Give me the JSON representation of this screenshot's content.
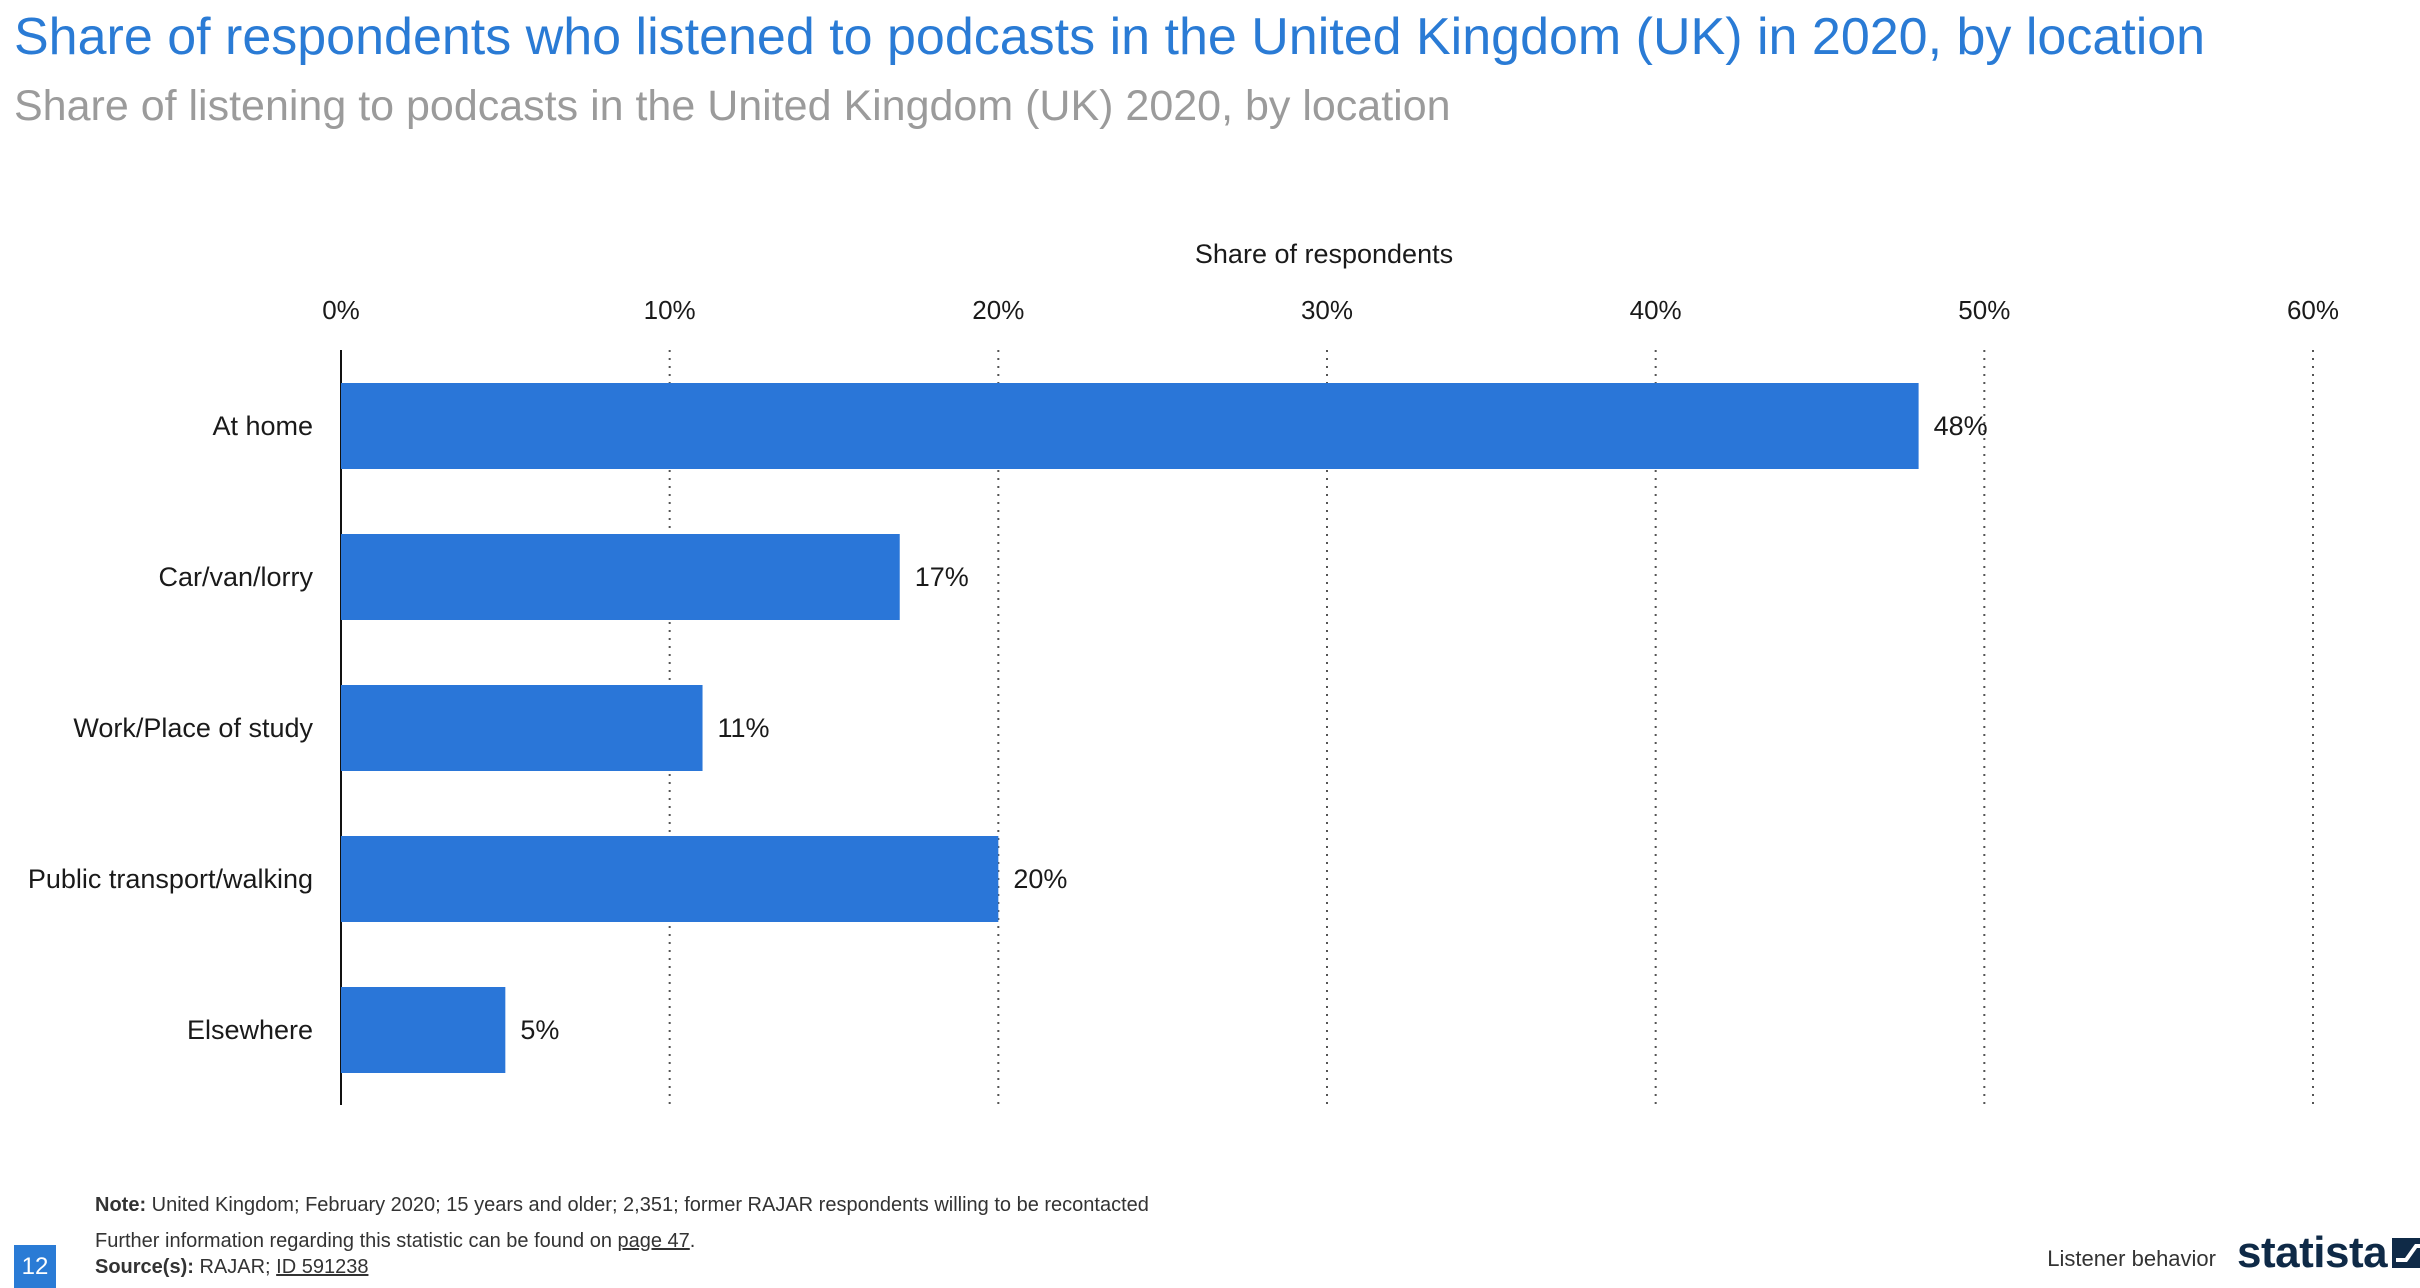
{
  "header": {
    "title": "Share of respondents who listened to podcasts in the United Kingdom (UK) in 2020, by location",
    "subtitle": "Share of listening to podcasts in the United Kingdom (UK) 2020, by location"
  },
  "chart_data": {
    "type": "bar",
    "orientation": "horizontal",
    "xlabel": "Share of respondents",
    "xlim": [
      0,
      60
    ],
    "x_ticks": [
      "0%",
      "10%",
      "20%",
      "30%",
      "40%",
      "50%",
      "60%"
    ],
    "categories": [
      "At home",
      "Car/van/lorry",
      "Work/Place of study",
      "Public transport/walking",
      "Elsewhere"
    ],
    "values": [
      48,
      17,
      11,
      20,
      5
    ],
    "data_labels": [
      "48%",
      "17%",
      "11%",
      "20%",
      "5%"
    ],
    "grid": "vertical dotted",
    "bar_color": "#2a76d8",
    "axis_position": "top"
  },
  "footer": {
    "note_label": "Note:",
    "note_text": " United Kingdom; February 2020; 15 years and older; 2,351; former RAJAR respondents willing to be recontacted",
    "info_text": "Further information regarding this statistic can be found on ",
    "info_link": "page 47",
    "info_end": ".",
    "source_label": "Source(s):",
    "source_text": " RAJAR; ",
    "source_link": "ID 591238",
    "page_number": "12",
    "section": "Listener behavior",
    "logo_text": "statista"
  },
  "colors": {
    "title": "#2a7bd5",
    "subtitle": "#9b9b9b",
    "bars": "#2a76d8",
    "logo": "#0f2a47"
  }
}
